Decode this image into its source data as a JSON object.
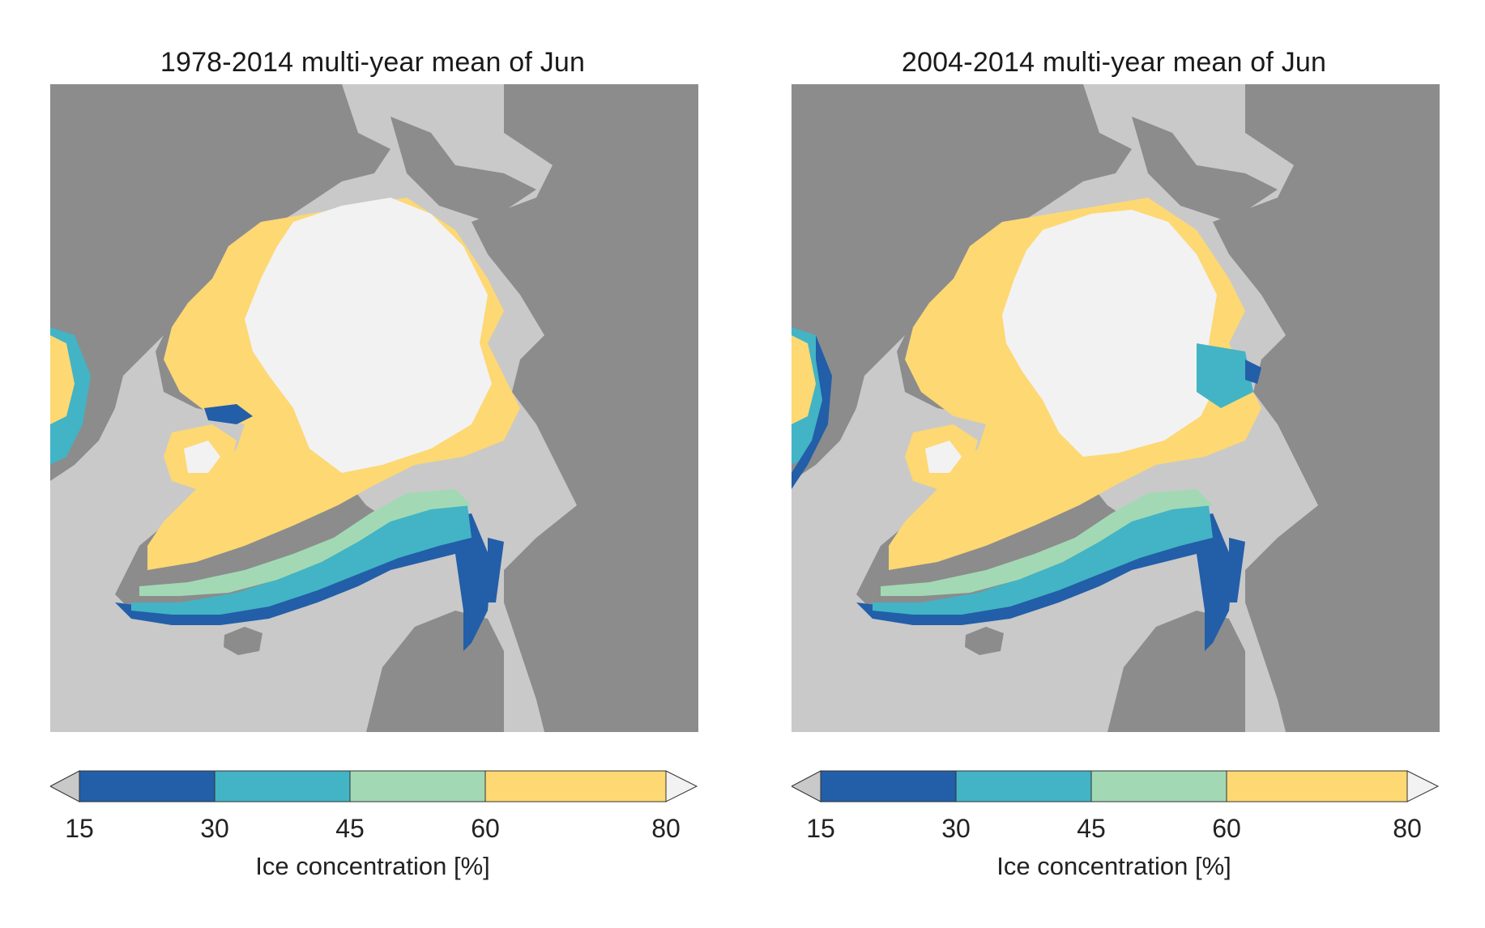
{
  "panels": [
    {
      "title": "1978-2014 multi-year mean of Jun"
    },
    {
      "title": "2004-2014 multi-year mean of Jun"
    }
  ],
  "colorbar": {
    "label": "Ice concentration [%]",
    "ticks": [
      "15",
      "30",
      "45",
      "60",
      "80"
    ],
    "bins": [
      {
        "from": 15,
        "to": 30,
        "color": "#235ea8"
      },
      {
        "from": 30,
        "to": 45,
        "color": "#42b4c5"
      },
      {
        "from": 45,
        "to": 60,
        "color": "#a2d9b4"
      },
      {
        "from": 60,
        "to": 80,
        "color": "#fdd873"
      }
    ],
    "under_color": "#c9c9c9",
    "over_color": "#f2f2f2"
  },
  "colors": {
    "ocean": "#c9c9c9",
    "land": "#8c8c8c",
    "ice_over_80": "#f2f2f2"
  }
}
